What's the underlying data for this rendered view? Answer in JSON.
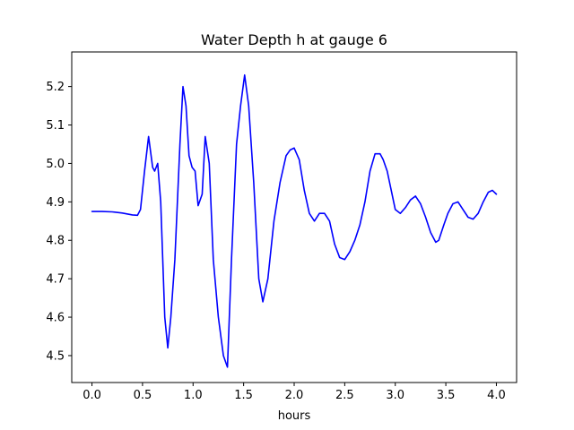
{
  "chart_data": {
    "type": "line",
    "title": "Water Depth h at gauge 6",
    "xlabel": "hours",
    "ylabel": "",
    "xlim": [
      -0.2,
      4.2
    ],
    "ylim": [
      4.43,
      5.29
    ],
    "grid": false,
    "x_ticks": [
      0.0,
      0.5,
      1.0,
      1.5,
      2.0,
      2.5,
      3.0,
      3.5,
      4.0
    ],
    "x_tick_labels": [
      "0.0",
      "0.5",
      "1.0",
      "1.5",
      "2.0",
      "2.5",
      "3.0",
      "3.5",
      "4.0"
    ],
    "y_ticks": [
      4.5,
      4.6,
      4.7,
      4.8,
      4.9,
      5.0,
      5.1,
      5.2
    ],
    "y_tick_labels": [
      "4.5",
      "4.6",
      "4.7",
      "4.8",
      "4.9",
      "5.0",
      "5.1",
      "5.2"
    ],
    "series": [
      {
        "color": "#0000ff",
        "x": [
          0.0,
          0.1,
          0.2,
          0.3,
          0.4,
          0.45,
          0.48,
          0.52,
          0.56,
          0.6,
          0.62,
          0.65,
          0.68,
          0.72,
          0.75,
          0.78,
          0.82,
          0.87,
          0.9,
          0.93,
          0.96,
          0.99,
          1.02,
          1.05,
          1.09,
          1.12,
          1.16,
          1.2,
          1.25,
          1.3,
          1.34,
          1.38,
          1.43,
          1.47,
          1.51,
          1.55,
          1.6,
          1.65,
          1.69,
          1.74,
          1.8,
          1.86,
          1.92,
          1.96,
          2.0,
          2.05,
          2.1,
          2.15,
          2.2,
          2.25,
          2.3,
          2.35,
          2.4,
          2.45,
          2.5,
          2.55,
          2.6,
          2.65,
          2.7,
          2.75,
          2.8,
          2.85,
          2.88,
          2.92,
          2.96,
          3.0,
          3.05,
          3.1,
          3.15,
          3.2,
          3.25,
          3.3,
          3.35,
          3.4,
          3.43,
          3.48,
          3.52,
          3.57,
          3.62,
          3.67,
          3.72,
          3.77,
          3.82,
          3.87,
          3.92,
          3.96,
          4.0
        ],
        "y": [
          4.875,
          4.875,
          4.874,
          4.871,
          4.866,
          4.865,
          4.88,
          4.98,
          5.07,
          4.99,
          4.98,
          5.0,
          4.9,
          4.6,
          4.52,
          4.6,
          4.75,
          5.05,
          5.2,
          5.15,
          5.02,
          4.99,
          4.98,
          4.89,
          4.92,
          5.07,
          5.0,
          4.75,
          4.6,
          4.5,
          4.47,
          4.75,
          5.05,
          5.15,
          5.23,
          5.15,
          4.95,
          4.7,
          4.64,
          4.7,
          4.85,
          4.95,
          5.02,
          5.035,
          5.04,
          5.01,
          4.93,
          4.87,
          4.85,
          4.87,
          4.87,
          4.85,
          4.79,
          4.755,
          4.75,
          4.77,
          4.8,
          4.84,
          4.9,
          4.98,
          5.025,
          5.025,
          5.01,
          4.98,
          4.93,
          4.88,
          4.87,
          4.885,
          4.905,
          4.915,
          4.895,
          4.86,
          4.82,
          4.795,
          4.8,
          4.84,
          4.87,
          4.895,
          4.9,
          4.88,
          4.86,
          4.855,
          4.87,
          4.9,
          4.925,
          4.93,
          4.92
        ]
      }
    ]
  }
}
